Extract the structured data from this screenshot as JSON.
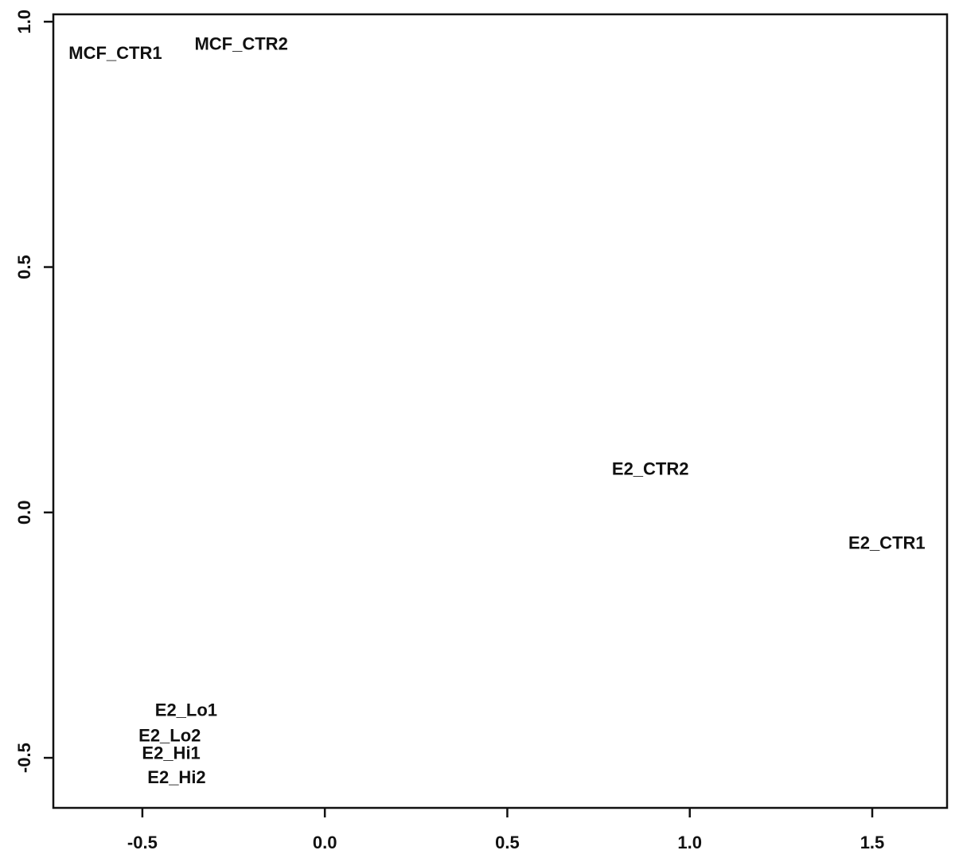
{
  "chart_data": {
    "type": "scatter",
    "labels": [
      "MCF_CTR1",
      "MCF_CTR2",
      "E2_CTR2",
      "E2_CTR1",
      "E2_Lo1",
      "E2_Lo2",
      "E2_Hi1",
      "E2_Hi2"
    ],
    "x": [
      -0.574,
      -0.229,
      0.892,
      1.54,
      -0.38,
      -0.425,
      -0.421,
      -0.406
    ],
    "values": [
      0.934,
      0.952,
      0.086,
      -0.065,
      -0.405,
      -0.457,
      -0.493,
      -0.542
    ],
    "color": "#111111",
    "xlim": [
      -0.744,
      1.705
    ],
    "ylim": [
      -0.602,
      1.015
    ],
    "xticks": [
      -0.5,
      {
        "value": 0,
        "label": "0.0"
      },
      0.5,
      {
        "value": 1,
        "label": "1.0"
      },
      1.5
    ],
    "yticks": [
      -0.5,
      {
        "value": 0,
        "label": "0.0"
      },
      0.5,
      {
        "value": 1,
        "label": "1.0"
      }
    ]
  }
}
